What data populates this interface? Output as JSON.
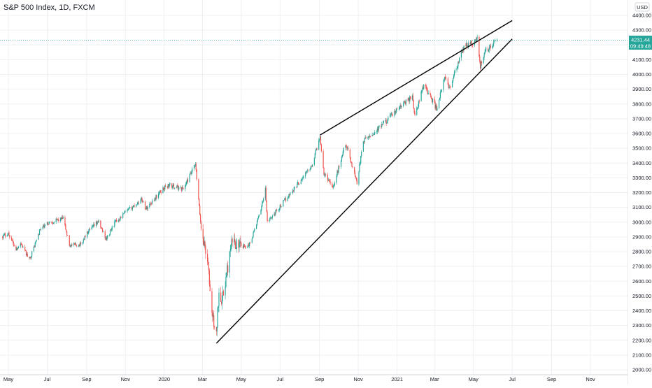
{
  "title": "S&P 500 Index, 1D, FXCM",
  "currency": "USD",
  "last_price": "4231.44",
  "countdown": "09:49:48",
  "colors": {
    "up": "#26a69a",
    "down": "#ef5350",
    "grid": "#eef0f3",
    "axis_text": "#787b86",
    "price_line": "#26a69a",
    "trendline": "#000000"
  },
  "chart_data": {
    "type": "candlestick",
    "title": "S&P 500 Index, 1D, FXCM",
    "ylabel": "USD",
    "ylim": [
      1970,
      4440
    ],
    "y_ticks": [
      "4400.00",
      "4300.00",
      "4200.00",
      "4100.00",
      "4000.00",
      "3900.00",
      "3800.00",
      "3700.00",
      "3600.00",
      "3500.00",
      "3400.00",
      "3300.00",
      "3200.00",
      "3100.00",
      "3000.00",
      "2900.00",
      "2800.00",
      "2700.00",
      "2600.00",
      "2500.00",
      "2400.00",
      "2300.00",
      "2200.00",
      "2100.00",
      "2000.00"
    ],
    "x_ticks": [
      {
        "label": "May",
        "date": "2019-05-01"
      },
      {
        "label": "Jul",
        "date": "2019-07-01"
      },
      {
        "label": "Sep",
        "date": "2019-09-01"
      },
      {
        "label": "Nov",
        "date": "2019-11-01"
      },
      {
        "label": "2020",
        "date": "2020-01-01"
      },
      {
        "label": "Mar",
        "date": "2020-03-01"
      },
      {
        "label": "May",
        "date": "2020-05-01"
      },
      {
        "label": "Jul",
        "date": "2020-07-01"
      },
      {
        "label": "Sep",
        "date": "2020-09-01"
      },
      {
        "label": "Nov",
        "date": "2020-11-01"
      },
      {
        "label": "2021",
        "date": "2021-01-01"
      },
      {
        "label": "Mar",
        "date": "2021-03-01"
      },
      {
        "label": "May",
        "date": "2021-05-01"
      },
      {
        "label": "Jul",
        "date": "2021-07-01"
      },
      {
        "label": "Sep",
        "date": "2021-09-01"
      },
      {
        "label": "Nov",
        "date": "2021-11-01"
      }
    ],
    "price_path": [
      [
        "2019-04-22",
        2905
      ],
      [
        "2019-05-01",
        2925
      ],
      [
        "2019-05-13",
        2815
      ],
      [
        "2019-05-20",
        2860
      ],
      [
        "2019-06-03",
        2745
      ],
      [
        "2019-06-20",
        2950
      ],
      [
        "2019-07-03",
        2995
      ],
      [
        "2019-07-26",
        3025
      ],
      [
        "2019-08-05",
        2845
      ],
      [
        "2019-08-15",
        2845
      ],
      [
        "2019-08-23",
        2850
      ],
      [
        "2019-09-01",
        2920
      ],
      [
        "2019-09-19",
        3005
      ],
      [
        "2019-10-02",
        2885
      ],
      [
        "2019-10-15",
        2995
      ],
      [
        "2019-11-01",
        3065
      ],
      [
        "2019-11-27",
        3155
      ],
      [
        "2019-12-03",
        3090
      ],
      [
        "2019-12-31",
        3230
      ],
      [
        "2020-01-08",
        3250
      ],
      [
        "2020-01-31",
        3225
      ],
      [
        "2020-02-19",
        3390
      ],
      [
        "2020-02-28",
        2955
      ],
      [
        "2020-03-09",
        2745
      ],
      [
        "2020-03-16",
        2385
      ],
      [
        "2020-03-23",
        2230
      ],
      [
        "2020-03-27",
        2540
      ],
      [
        "2020-04-01",
        2470
      ],
      [
        "2020-04-17",
        2875
      ],
      [
        "2020-05-01",
        2830
      ],
      [
        "2020-05-14",
        2850
      ],
      [
        "2020-05-29",
        3040
      ],
      [
        "2020-06-08",
        3220
      ],
      [
        "2020-06-11",
        3000
      ],
      [
        "2020-06-30",
        3100
      ],
      [
        "2020-07-31",
        3270
      ],
      [
        "2020-08-20",
        3385
      ],
      [
        "2020-09-02",
        3580
      ],
      [
        "2020-09-08",
        3330
      ],
      [
        "2020-09-23",
        3240
      ],
      [
        "2020-10-12",
        3535
      ],
      [
        "2020-10-30",
        3270
      ],
      [
        "2020-11-09",
        3550
      ],
      [
        "2020-11-30",
        3620
      ],
      [
        "2020-12-31",
        3755
      ],
      [
        "2021-01-25",
        3855
      ],
      [
        "2021-01-29",
        3715
      ],
      [
        "2021-02-12",
        3935
      ],
      [
        "2021-03-04",
        3770
      ],
      [
        "2021-03-17",
        3975
      ],
      [
        "2021-03-25",
        3910
      ],
      [
        "2021-04-16",
        4185
      ],
      [
        "2021-05-07",
        4235
      ],
      [
        "2021-05-12",
        4060
      ],
      [
        "2021-05-20",
        4155
      ],
      [
        "2021-06-07",
        4231
      ]
    ],
    "trendlines": [
      {
        "start": {
          "date": "2020-09-02",
          "price": 3590
        },
        "end": {
          "date": "2021-07-01",
          "price": 4365
        }
      },
      {
        "start": {
          "date": "2020-03-23",
          "price": 2180
        },
        "end": {
          "date": "2021-07-01",
          "price": 4240
        }
      }
    ]
  }
}
